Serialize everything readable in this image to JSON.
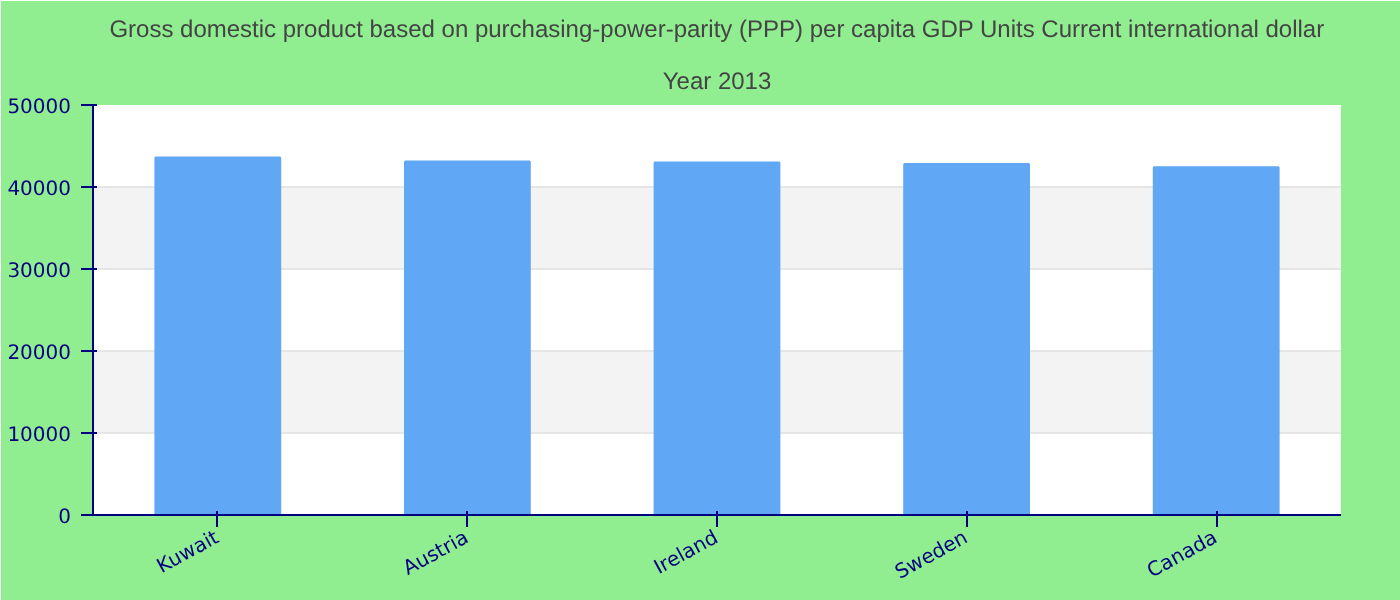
{
  "chart_data": {
    "type": "bar",
    "title": "Gross domestic product based on purchasing-power-parity (PPP) per capita GDP Units Current international dollar",
    "subtitle": "Year 2013",
    "categories": [
      "Kuwait",
      "Austria",
      "Ireland",
      "Sweden",
      "Canada"
    ],
    "values": [
      43600,
      43100,
      43000,
      42800,
      42400
    ],
    "color": "#60a8f5",
    "ylim": [
      0,
      50000
    ],
    "yticks": [
      0,
      10000,
      20000,
      30000,
      40000,
      50000
    ],
    "grid": "y"
  }
}
